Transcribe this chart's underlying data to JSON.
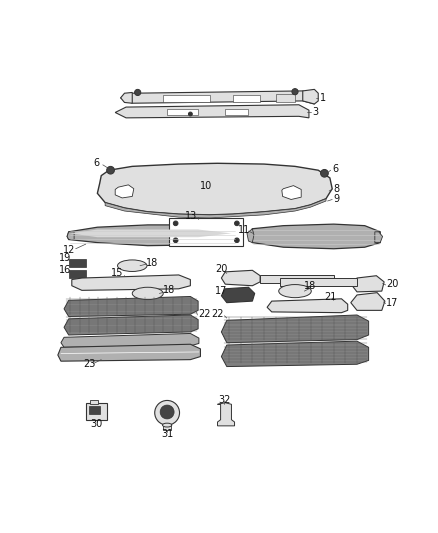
{
  "bg_color": "#ffffff",
  "line_color": "#333333",
  "gray_fill": "#d0d0d0",
  "dark_fill": "#444444",
  "chrome_color": "#b0b0b0",
  "light_gray": "#e0e0e0",
  "mesh_color": "#808080",
  "white": "#ffffff"
}
